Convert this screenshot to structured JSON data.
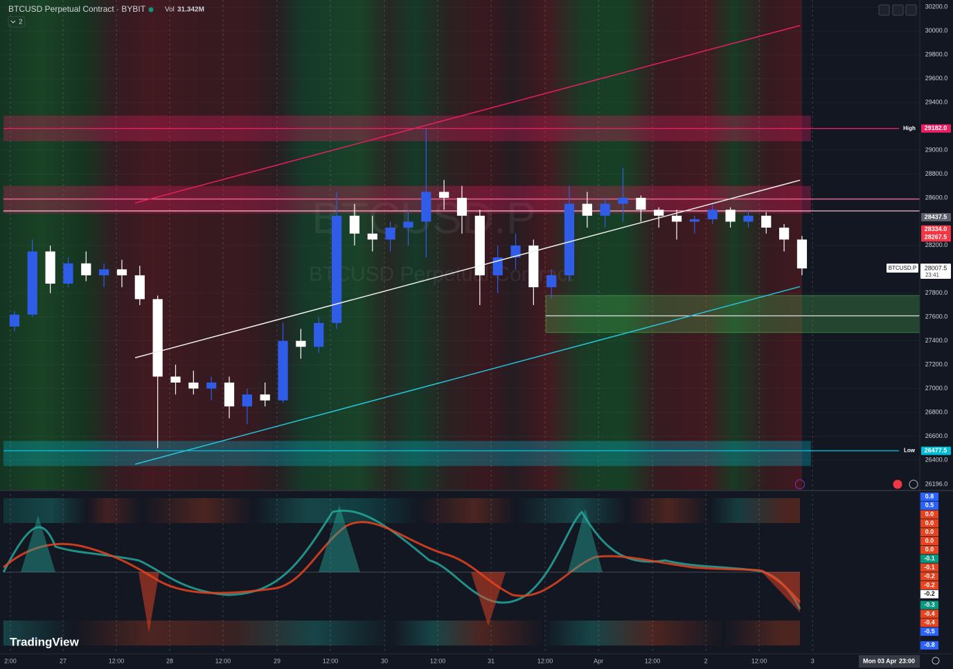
{
  "header": {
    "symbol": "BTCUSD Perpetual Contract · BYBIT",
    "volume_label": "Vol",
    "volume": "31.342M",
    "indicator_count": "2"
  },
  "watermark": {
    "symbol": "BTCUSD.P",
    "description": "BTCUSD Perpetual Contract"
  },
  "chart_data": {
    "type": "candlestick",
    "open": [
      27520,
      27620,
      28150,
      27880,
      28050,
      27950,
      28000,
      27950,
      27750,
      27100,
      27050,
      27000,
      27050,
      26850,
      26950,
      26900,
      27400,
      27350,
      27550,
      28450,
      28300,
      28250,
      28350,
      28400,
      28650,
      28600,
      28450,
      27950,
      28100,
      28200,
      27850,
      27950,
      28550,
      28450,
      28550,
      28600,
      28500,
      28450,
      28400,
      28420,
      28500,
      28400,
      28450,
      28350,
      28250
    ],
    "high": [
      27650,
      28250,
      28200,
      28100,
      28150,
      28050,
      28080,
      28030,
      27780,
      27200,
      27150,
      27100,
      27100,
      27000,
      27050,
      27550,
      27500,
      27600,
      28650,
      28550,
      28450,
      28400,
      28500,
      29180,
      28750,
      28700,
      28500,
      28200,
      28300,
      28250,
      28000,
      28700,
      28650,
      28600,
      28850,
      28620,
      28520,
      28500,
      28450,
      28550,
      28520,
      28500,
      28480,
      28380,
      28280
    ],
    "low": [
      27480,
      27600,
      27800,
      27850,
      27900,
      27850,
      27850,
      27700,
      26500,
      26950,
      26950,
      26900,
      26750,
      26700,
      26850,
      26880,
      27250,
      27300,
      27500,
      28200,
      28150,
      28150,
      28200,
      28100,
      28500,
      28300,
      27700,
      27800,
      28000,
      27700,
      27750,
      27900,
      28350,
      28350,
      28400,
      28400,
      28350,
      28250,
      28300,
      28380,
      28350,
      28350,
      28300,
      28150,
      27950
    ],
    "close": [
      27620,
      28150,
      27880,
      28050,
      27950,
      28000,
      27950,
      27750,
      27100,
      27050,
      27000,
      27050,
      26850,
      26950,
      26900,
      27400,
      27350,
      27550,
      28450,
      28300,
      28250,
      28350,
      28400,
      28650,
      28600,
      28450,
      27950,
      28100,
      28200,
      27850,
      27950,
      28550,
      28450,
      28550,
      28600,
      28500,
      28450,
      28400,
      28420,
      28500,
      28400,
      28450,
      28350,
      28250,
      28007.5
    ],
    "up_color": "#2f5de8",
    "down_color": "#ffffff",
    "ylim": [
      26150,
      30260
    ],
    "yticks": [
      {
        "value": 30200,
        "label": "30200.0"
      },
      {
        "value": 30000,
        "label": "30000.0"
      },
      {
        "value": 29800,
        "label": "29800.0"
      },
      {
        "value": 29600,
        "label": "29600.0"
      },
      {
        "value": 29400,
        "label": "29400.0"
      },
      {
        "value": 29000,
        "label": "29000.0"
      },
      {
        "value": 28800,
        "label": "28800.0"
      },
      {
        "value": 28600,
        "label": "28600.0"
      },
      {
        "value": 28200,
        "label": "28200.0"
      },
      {
        "value": 27800,
        "label": "27800.0"
      },
      {
        "value": 27600,
        "label": "27600.0"
      },
      {
        "value": 27400,
        "label": "27400.0"
      },
      {
        "value": 27200,
        "label": "27200.0"
      },
      {
        "value": 27000,
        "label": "27000.0"
      },
      {
        "value": 26800,
        "label": "26800.0"
      },
      {
        "value": 26600,
        "label": "26600.0"
      },
      {
        "value": 26400,
        "label": "26400.0"
      },
      {
        "value": 26196,
        "label": "26196.0"
      }
    ],
    "xlim": [
      -0.81,
      50.58
    ],
    "xticks": [
      {
        "value": -0.23,
        "label": "2:00"
      },
      {
        "value": 2.71,
        "label": "27"
      },
      {
        "value": 5.69,
        "label": "12:00"
      },
      {
        "value": 8.67,
        "label": "28"
      },
      {
        "value": 11.65,
        "label": "12:00"
      },
      {
        "value": 14.67,
        "label": "29"
      },
      {
        "value": 17.65,
        "label": "12:00"
      },
      {
        "value": 20.67,
        "label": "30"
      },
      {
        "value": 23.65,
        "label": "12:00"
      },
      {
        "value": 26.63,
        "label": "31"
      },
      {
        "value": 29.65,
        "label": "12:00"
      },
      {
        "value": 32.63,
        "label": "Apr"
      },
      {
        "value": 35.65,
        "label": "12:00"
      },
      {
        "value": 38.63,
        "label": "2"
      },
      {
        "value": 41.61,
        "label": "12:00"
      },
      {
        "value": 44.59,
        "label": "3"
      }
    ],
    "zones": [
      {
        "from": 29290,
        "to": 29075,
        "color": "#e91e63"
      },
      {
        "from": 28700,
        "to": 28470,
        "color": "#e91e63"
      },
      {
        "from": 27780,
        "to": 27470,
        "color": "#4caf50",
        "start": 29.69
      },
      {
        "from": 26560,
        "to": 26350,
        "color": "#00bcd4"
      }
    ],
    "levels": [
      {
        "value": 28590,
        "color": "#f06292"
      },
      {
        "value": 28490,
        "color": "#f8bbd0"
      },
      {
        "value": 27610,
        "color": "#e0e0e0",
        "start": 29.69
      }
    ],
    "trendlines": [
      {
        "color": "#e91e63",
        "from": [
          6.74,
          28557
        ],
        "to": [
          43.89,
          30046
        ]
      },
      {
        "color": "#f0f0f0",
        "from": [
          6.74,
          27258
        ],
        "to": [
          43.89,
          28748
        ]
      },
      {
        "color": "#26c6da",
        "from": [
          6.74,
          26365
        ],
        "to": [
          43.89,
          27855
        ]
      }
    ],
    "price_labels": [
      {
        "value": 29182,
        "label": "29182.0",
        "tag": "High",
        "color": "#e91e63",
        "line": true
      },
      {
        "value": 28437.5,
        "label": "28437.5",
        "color": "#5d606b"
      },
      {
        "value": 28334,
        "label": "28334.0",
        "color": "#f23645"
      },
      {
        "value": 28267.5,
        "label": "28267.5",
        "color": "#f23645"
      },
      {
        "value": 26477.5,
        "label": "26477.5",
        "tag": "Low",
        "color": "#00bcd4",
        "line": true
      }
    ],
    "last_price": {
      "value": 28007.5,
      "label": "28007.5",
      "tag": "BTCUSD.P",
      "countdown": "23:41"
    }
  },
  "oscillator": {
    "scale": [
      {
        "label": "0.8",
        "color": "#2962ff"
      },
      {
        "label": "0.5",
        "color": "#2962ff"
      },
      {
        "label": "0.0",
        "color": "#e8431f"
      },
      {
        "label": "0.0",
        "color": "#e8431f"
      },
      {
        "label": "0.0",
        "color": "#e8431f"
      },
      {
        "label": "0.0",
        "color": "#e8431f"
      },
      {
        "label": "0.0",
        "color": "#e8431f"
      },
      {
        "label": "-0.1",
        "color": "#089981"
      },
      {
        "label": "-0.1",
        "color": "#e8431f"
      },
      {
        "label": "-0.2",
        "color": "#e8431f"
      },
      {
        "label": "-0.2",
        "color": "#e8431f"
      },
      {
        "label": "-0.2",
        "color": "#ffffff"
      },
      {
        "label": "-0.3",
        "color": "#089981"
      },
      {
        "label": "-0.4",
        "color": "#e8431f"
      },
      {
        "label": "-0.4",
        "color": "#e8431f"
      },
      {
        "label": "-0.5",
        "color": "#2962ff"
      },
      {
        "label": "-0.8",
        "color": "#2962ff"
      }
    ]
  },
  "footer": {
    "brand": "TradingView",
    "cursor_date": "Mon 03 Apr",
    "cursor_time": "23:00"
  }
}
